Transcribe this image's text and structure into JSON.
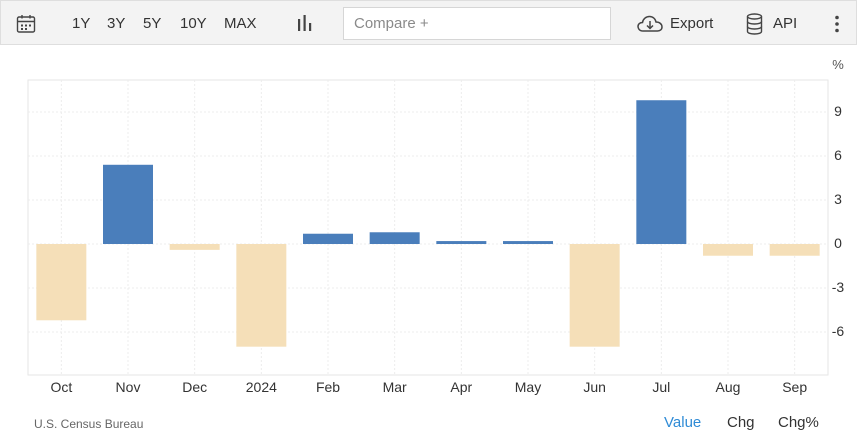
{
  "toolbar": {
    "ranges": [
      "1Y",
      "3Y",
      "5Y",
      "10Y",
      "MAX"
    ],
    "compare_placeholder": "Compare +",
    "export_label": "Export",
    "api_label": "API"
  },
  "chart_data": {
    "type": "bar",
    "unit": "%",
    "categories": [
      "Oct",
      "Nov",
      "Dec",
      "2024",
      "Feb",
      "Mar",
      "Apr",
      "May",
      "Jun",
      "Jul",
      "Aug",
      "Sep"
    ],
    "values": [
      -5.2,
      5.4,
      -0.4,
      -7.0,
      0.7,
      0.8,
      0.2,
      0.2,
      -7.0,
      9.8,
      -0.8,
      -0.8
    ],
    "yticks": [
      9,
      6,
      3,
      0,
      -3,
      -6
    ],
    "ylim": [
      -9,
      11
    ],
    "colors": {
      "positive": "#4a7ebb",
      "negative": "#f5dfb8"
    }
  },
  "footer": {
    "source": "U.S. Census Bureau",
    "modes": [
      "Value",
      "Chg",
      "Chg%"
    ]
  }
}
